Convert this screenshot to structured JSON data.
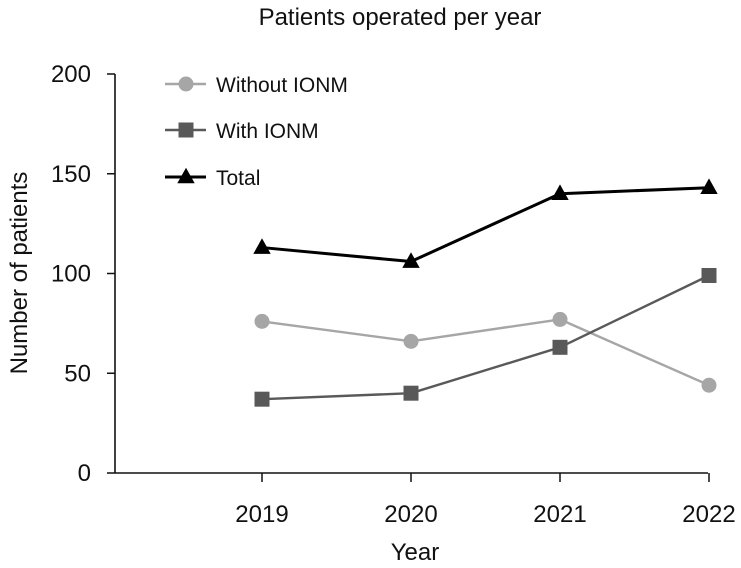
{
  "chart_data": {
    "type": "line",
    "title": "Patients operated per year",
    "xlabel": "Year",
    "ylabel": "Number of patients",
    "categories": [
      "2019",
      "2020",
      "2021",
      "2022"
    ],
    "ylim": [
      0,
      200
    ],
    "yticks": [
      0,
      50,
      100,
      150,
      200
    ],
    "grid": false,
    "legend_position": "top-left",
    "series": [
      {
        "name": "Without IONM",
        "values": [
          76,
          66,
          77,
          44
        ],
        "color": "#a6a6a6",
        "marker": "circle"
      },
      {
        "name": "With IONM",
        "values": [
          37,
          40,
          63,
          99
        ],
        "color": "#595959",
        "marker": "square"
      },
      {
        "name": "Total",
        "values": [
          113,
          106,
          140,
          143
        ],
        "color": "#000000",
        "marker": "triangle"
      }
    ]
  }
}
